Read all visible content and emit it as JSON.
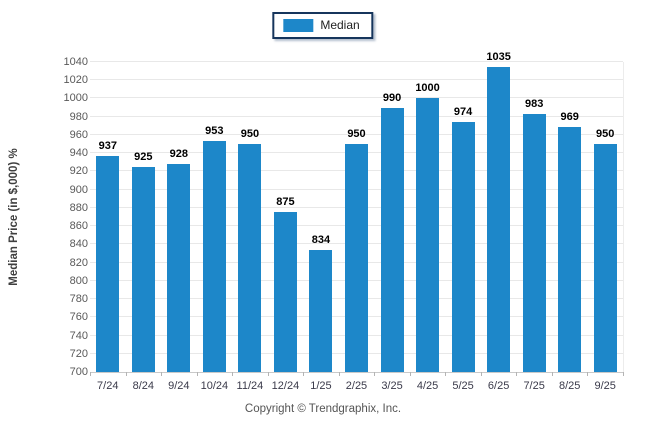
{
  "legend": {
    "label": "Median",
    "swatch_color": "#1d87c9"
  },
  "copyright": "Copyright © Trendgraphix, Inc.",
  "chart_data": {
    "type": "bar",
    "categories": [
      "7/24",
      "8/24",
      "9/24",
      "10/24",
      "11/24",
      "12/24",
      "1/25",
      "2/25",
      "3/25",
      "4/25",
      "5/25",
      "6/25",
      "7/25",
      "8/25",
      "9/25"
    ],
    "series": [
      {
        "name": "Median",
        "values": [
          937,
          925,
          928,
          953,
          950,
          875,
          834,
          950,
          990,
          1000,
          974,
          1035,
          983,
          969,
          950
        ]
      }
    ],
    "title": "",
    "xlabel": "",
    "ylabel": "Median Price (in $,000) %",
    "ylim": [
      700,
      1040
    ],
    "ytick_step": 20,
    "grid": "horizontal",
    "legend_position": "top-center",
    "bar_color": "#1d87c9",
    "gridline_color": "#e8e8e8",
    "value_labels": true
  }
}
